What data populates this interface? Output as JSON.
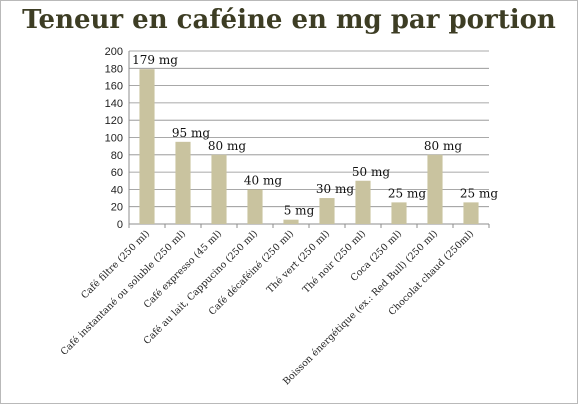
{
  "chart_data": {
    "type": "bar",
    "title": "Teneur en caféine en mg par portion",
    "categories": [
      "Café filtre (250 ml)",
      "Café instantané ou soluble (250 ml)",
      "Café expresso (45 ml)",
      "Café au lait, Cappucino (250 ml)",
      "Café décaféiné (250 ml)",
      "Thé vert (250 ml)",
      "Thé noir (250 ml)",
      "Coca (250 ml)",
      "Boisson énergétique (ex.: Red Bull) (250 ml)",
      "Chocolat chaud (250ml)"
    ],
    "values": [
      179,
      95,
      80,
      40,
      5,
      30,
      50,
      25,
      80,
      25
    ],
    "data_labels": [
      "179 mg",
      "95 mg",
      "80 mg",
      "40 mg",
      "5 mg",
      "30 mg",
      "50 mg",
      "25 mg",
      "80 mg",
      "25 mg"
    ],
    "ylim": [
      0,
      200
    ],
    "yticks": [
      0,
      20,
      40,
      60,
      80,
      100,
      120,
      140,
      160,
      180,
      200
    ],
    "xlabel": "",
    "ylabel": "",
    "grid": true,
    "legend": "none",
    "bar_color": "#c9c39f"
  }
}
